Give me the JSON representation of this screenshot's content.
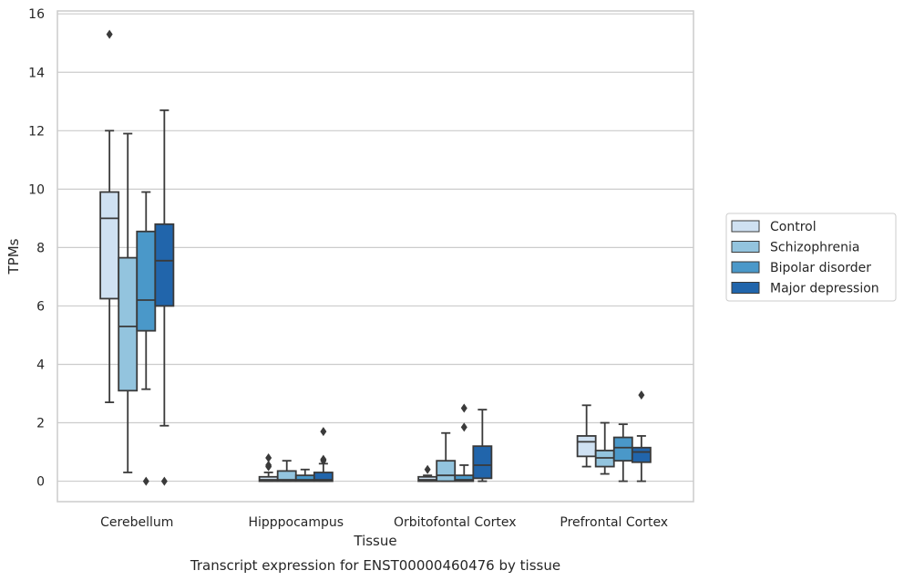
{
  "chart_data": {
    "type": "boxplot",
    "title": "",
    "caption": "Transcript expression for ENST00000460476 by tissue",
    "xlabel": "Tissue",
    "ylabel": "TPMs",
    "ylim": [
      -0.7,
      16.1
    ],
    "yticks": [
      0,
      2,
      4,
      6,
      8,
      10,
      12,
      14,
      16
    ],
    "grid": "horizontal",
    "legend_position": "right",
    "categories": [
      "Cerebellum",
      "Hipppocampus",
      "Orbitofontal Cortex",
      "Prefrontal Cortex"
    ],
    "series": [
      {
        "name": "Control",
        "color": "#cfe1f2",
        "boxes": [
          {
            "whisker_low": 2.7,
            "q1": 6.25,
            "median": 9.0,
            "q3": 9.9,
            "whisker_high": 12.0,
            "outliers": [
              15.3
            ]
          },
          {
            "whisker_low": 0.0,
            "q1": 0.0,
            "median": 0.05,
            "q3": 0.15,
            "whisker_high": 0.3,
            "outliers": [
              0.5,
              0.55,
              0.8
            ]
          },
          {
            "whisker_low": 0.0,
            "q1": 0.0,
            "median": 0.05,
            "q3": 0.15,
            "whisker_high": 0.2,
            "outliers": [
              0.4
            ]
          },
          {
            "whisker_low": 0.5,
            "q1": 0.85,
            "median": 1.35,
            "q3": 1.55,
            "whisker_high": 2.6,
            "outliers": []
          }
        ]
      },
      {
        "name": "Schizophrenia",
        "color": "#93c4de",
        "boxes": [
          {
            "whisker_low": 0.3,
            "q1": 3.1,
            "median": 5.3,
            "q3": 7.65,
            "whisker_high": 11.9,
            "outliers": []
          },
          {
            "whisker_low": 0.0,
            "q1": 0.0,
            "median": 0.05,
            "q3": 0.35,
            "whisker_high": 0.7,
            "outliers": []
          },
          {
            "whisker_low": 0.0,
            "q1": 0.0,
            "median": 0.2,
            "q3": 0.7,
            "whisker_high": 1.65,
            "outliers": []
          },
          {
            "whisker_low": 0.25,
            "q1": 0.5,
            "median": 0.8,
            "q3": 1.05,
            "whisker_high": 2.0,
            "outliers": []
          }
        ]
      },
      {
        "name": "Bipolar disorder",
        "color": "#4a98c9",
        "boxes": [
          {
            "whisker_low": 3.15,
            "q1": 5.15,
            "median": 6.2,
            "q3": 8.55,
            "whisker_high": 9.9,
            "outliers": [
              0.0
            ]
          },
          {
            "whisker_low": 0.0,
            "q1": 0.0,
            "median": 0.05,
            "q3": 0.2,
            "whisker_high": 0.4,
            "outliers": []
          },
          {
            "whisker_low": 0.0,
            "q1": 0.0,
            "median": 0.05,
            "q3": 0.2,
            "whisker_high": 0.55,
            "outliers": [
              1.85,
              2.5
            ]
          },
          {
            "whisker_low": 0.0,
            "q1": 0.7,
            "median": 1.15,
            "q3": 1.5,
            "whisker_high": 1.95,
            "outliers": []
          }
        ]
      },
      {
        "name": "Major depression",
        "color": "#2165ab",
        "boxes": [
          {
            "whisker_low": 1.9,
            "q1": 6.0,
            "median": 7.55,
            "q3": 8.8,
            "whisker_high": 12.7,
            "outliers": [
              0.0
            ]
          },
          {
            "whisker_low": 0.0,
            "q1": 0.0,
            "median": 0.05,
            "q3": 0.3,
            "whisker_high": 0.6,
            "outliers": [
              0.7,
              0.75,
              1.7
            ]
          },
          {
            "whisker_low": 0.0,
            "q1": 0.1,
            "median": 0.55,
            "q3": 1.2,
            "whisker_high": 2.45,
            "outliers": []
          },
          {
            "whisker_low": 0.0,
            "q1": 0.65,
            "median": 1.0,
            "q3": 1.15,
            "whisker_high": 1.55,
            "outliers": [
              2.95
            ]
          }
        ]
      }
    ]
  }
}
